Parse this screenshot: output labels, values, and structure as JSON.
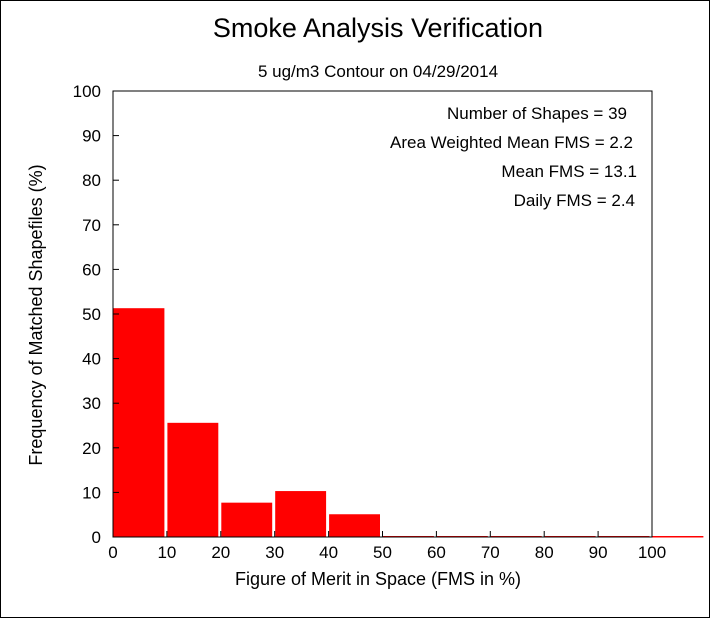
{
  "chart_data": {
    "type": "bar",
    "title": "Smoke Analysis Verification",
    "subtitle": "5 ug/m3 Contour on 04/29/2014",
    "xlabel": "Figure of Merit in Space (FMS in %)",
    "ylabel": "Frequency of Matched Shapefiles (%)",
    "xlim": [
      0,
      100
    ],
    "ylim": [
      0,
      100
    ],
    "xticks": [
      0,
      10,
      20,
      30,
      40,
      50,
      60,
      70,
      80,
      90,
      100
    ],
    "yticks": [
      0,
      10,
      20,
      30,
      40,
      50,
      60,
      70,
      80,
      90,
      100
    ],
    "bin_width": 10,
    "bins": [
      0,
      10,
      20,
      30,
      40,
      50,
      60,
      70,
      80,
      90,
      100
    ],
    "values": [
      51.3,
      25.6,
      7.7,
      10.3,
      5.1,
      0,
      0,
      0,
      0,
      0,
      0
    ],
    "bar_color": "#ff0000",
    "grid": false,
    "annotations": [
      "Number of Shapes = 39",
      "Area Weighted Mean FMS = 2.2",
      "Mean FMS = 13.1",
      "Daily FMS = 2.4"
    ]
  }
}
